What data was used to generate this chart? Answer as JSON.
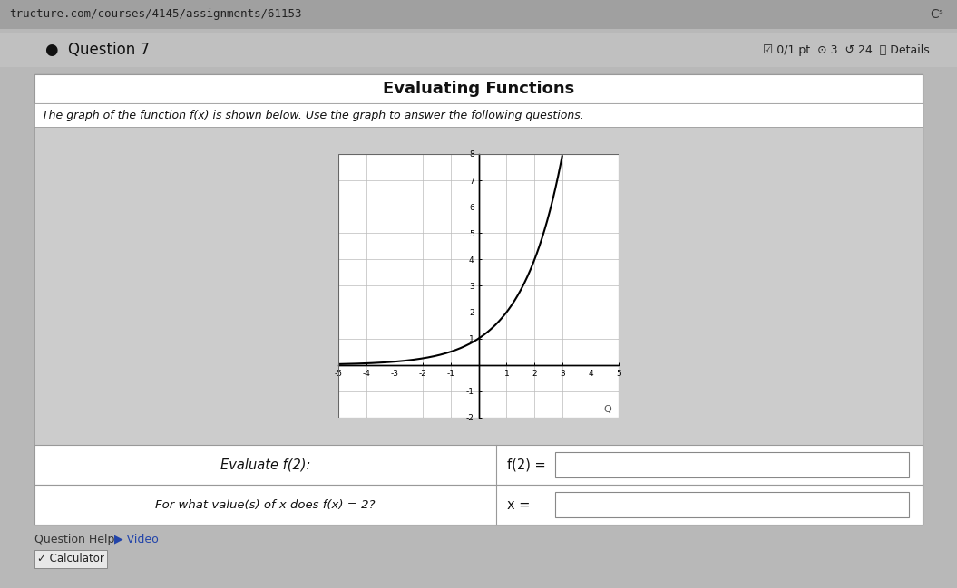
{
  "title": "Evaluating Functions",
  "subtitle": "The graph of the function f(x) is shown below. Use the graph to answer the following questions.",
  "question7_label": "Question 7",
  "graph_xlim": [
    -5,
    5
  ],
  "graph_ylim": [
    -2,
    8
  ],
  "graph_xticks": [
    -5,
    -4,
    -3,
    -2,
    -1,
    1,
    2,
    3,
    4,
    5
  ],
  "graph_yticks": [
    -2,
    -1,
    1,
    2,
    3,
    4,
    5,
    6,
    7,
    8
  ],
  "curve_color": "#000000",
  "grid_color": "#bbbbbb",
  "axis_color": "#000000",
  "page_bg": "#b8b8b8",
  "header_bg": "#a8a8a8",
  "panel_bg": "#ffffff",
  "graph_area_bg": "#c8c8c8",
  "row1_left": "Evaluate f(2):",
  "row1_right": "f(2) =",
  "row2_left": "For what value(s) of x does f(x) = 2?",
  "row2_right": "x =",
  "help_text": "Question Help:",
  "video_text": " Video",
  "calculator_text": " Calculator",
  "url_text": "tructure.com/courses/4145/assignments/61153",
  "details_text": "0/1 pt  Θ3  ↺24  ⓘ Details"
}
